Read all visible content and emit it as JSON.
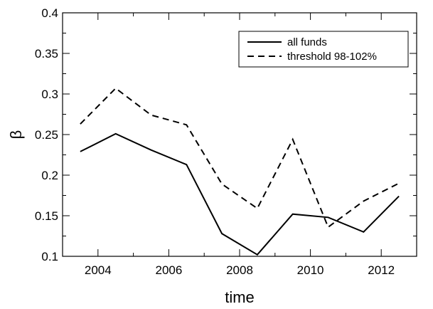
{
  "chart_data": {
    "type": "line",
    "xlabel": "time",
    "ylabel": "β",
    "xlim": [
      2003.0,
      2013.0
    ],
    "ylim": [
      0.1,
      0.4
    ],
    "xticks": [
      2004,
      2006,
      2008,
      2010,
      2012
    ],
    "yticks": [
      0.1,
      0.15,
      0.2,
      0.25,
      0.3,
      0.35,
      0.4
    ],
    "ytick_labels": [
      "0.1",
      "0.15",
      "0.2",
      "0.25",
      "0.3",
      "0.35",
      "0.4"
    ],
    "grid": false,
    "legend_position": "top-right",
    "series": [
      {
        "name": "all funds",
        "style": "solid",
        "color": "#000000",
        "x": [
          2003.5,
          2004.5,
          2005.5,
          2006.5,
          2007.5,
          2008.5,
          2009.5,
          2010.5,
          2011.5,
          2012.5
        ],
        "y": [
          0.229,
          0.251,
          0.231,
          0.213,
          0.128,
          0.102,
          0.152,
          0.148,
          0.13,
          0.174
        ]
      },
      {
        "name": "threshold 98-102%",
        "style": "dashed",
        "color": "#000000",
        "x": [
          2003.5,
          2004.5,
          2005.5,
          2006.5,
          2007.5,
          2008.5,
          2009.5,
          2010.5,
          2011.5,
          2012.5
        ],
        "y": [
          0.263,
          0.307,
          0.274,
          0.262,
          0.189,
          0.159,
          0.244,
          0.136,
          0.168,
          0.19
        ]
      }
    ]
  }
}
